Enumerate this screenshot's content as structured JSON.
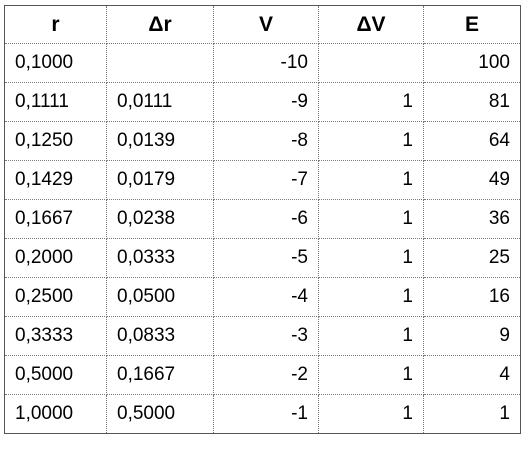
{
  "table": {
    "headers": [
      "r",
      "Δr",
      "V",
      "ΔV",
      "E"
    ],
    "rows": [
      [
        "0,1000",
        "",
        "-10",
        "",
        "100"
      ],
      [
        "0,1111",
        "0,0111",
        "-9",
        "1",
        "81"
      ],
      [
        "0,1250",
        "0,0139",
        "-8",
        "1",
        "64"
      ],
      [
        "0,1429",
        "0,0179",
        "-7",
        "1",
        "49"
      ],
      [
        "0,1667",
        "0,0238",
        "-6",
        "1",
        "36"
      ],
      [
        "0,2000",
        "0,0333",
        "-5",
        "1",
        "25"
      ],
      [
        "0,2500",
        "0,0500",
        "-4",
        "1",
        "16"
      ],
      [
        "0,3333",
        "0,0833",
        "-3",
        "1",
        "9"
      ],
      [
        "0,5000",
        "0,1667",
        "-2",
        "1",
        "4"
      ],
      [
        "1,0000",
        "0,5000",
        "-1",
        "1",
        "1"
      ]
    ]
  }
}
